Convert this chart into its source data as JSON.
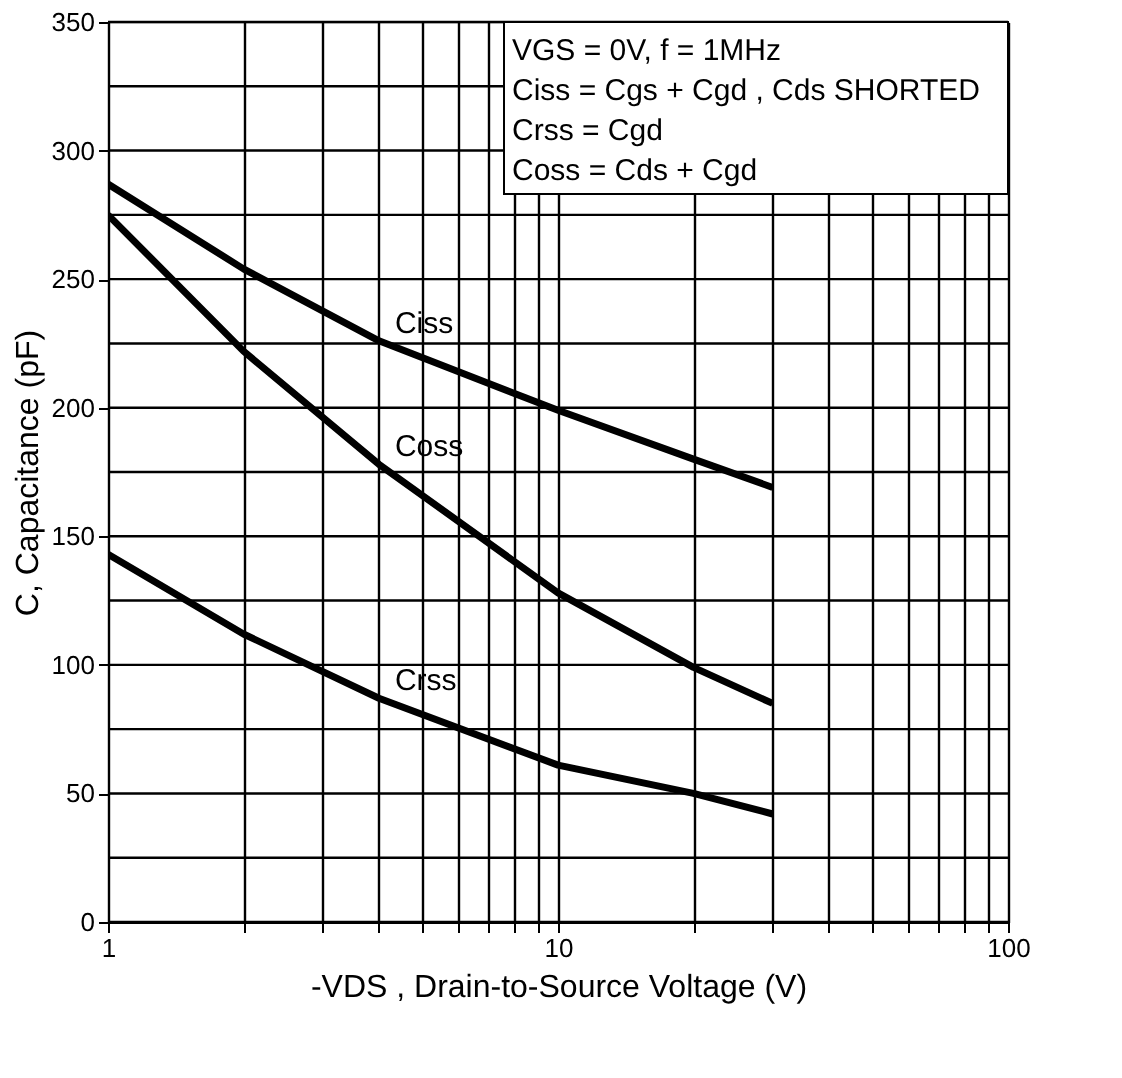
{
  "chart_data": {
    "type": "line",
    "xlabel": "-VDS , Drain-to-Source Voltage (V)",
    "ylabel": "C, Capacitance (pF)",
    "log": "x",
    "xlim": [
      1,
      100
    ],
    "ylim": [
      0,
      350
    ],
    "xticks": [
      1,
      {
        "value": 2,
        "label": null
      },
      {
        "value": 3,
        "label": null
      },
      {
        "value": 4,
        "label": null
      },
      {
        "value": 5,
        "label": null
      },
      {
        "value": 6,
        "label": null
      },
      {
        "value": 7,
        "label": null
      },
      {
        "value": 8,
        "label": null
      },
      {
        "value": 9,
        "label": null
      },
      10,
      {
        "value": 20,
        "label": null
      },
      {
        "value": 30,
        "label": null
      },
      {
        "value": 40,
        "label": null
      },
      {
        "value": 50,
        "label": null
      },
      {
        "value": 60,
        "label": null
      },
      {
        "value": 70,
        "label": null
      },
      {
        "value": 80,
        "label": null
      },
      {
        "value": 90,
        "label": null
      },
      100
    ],
    "yticks": [
      0,
      {
        "value": 25,
        "label": null
      },
      50,
      {
        "value": 75,
        "label": null
      },
      100,
      {
        "value": 125,
        "label": null
      },
      150,
      {
        "value": 175,
        "label": null
      },
      200,
      {
        "value": 225,
        "label": null
      },
      250,
      {
        "value": 275,
        "label": null
      },
      300,
      {
        "value": 325,
        "label": null
      },
      350
    ],
    "grid": true,
    "legend": false,
    "marker": "none",
    "line_style": "solid",
    "x": [
      1,
      2,
      4,
      10,
      20,
      30
    ],
    "series": [
      {
        "name": "Ciss",
        "color": "#000000",
        "values": [
          287,
          254,
          226,
          199,
          180,
          169
        ]
      },
      {
        "name": "Coss",
        "color": "#000000",
        "values": [
          275,
          222,
          178,
          128,
          99,
          85
        ]
      },
      {
        "name": "Crss",
        "color": "#000000",
        "values": [
          143,
          112,
          87,
          61,
          50,
          42
        ]
      }
    ],
    "annotations": [
      "VGS = 0V,        f = 1MHz",
      "Ciss = Cgs + Cgd ,  Cds  SHORTED",
      "Crss = Cgd",
      "Coss = Cds + Cgd"
    ]
  }
}
